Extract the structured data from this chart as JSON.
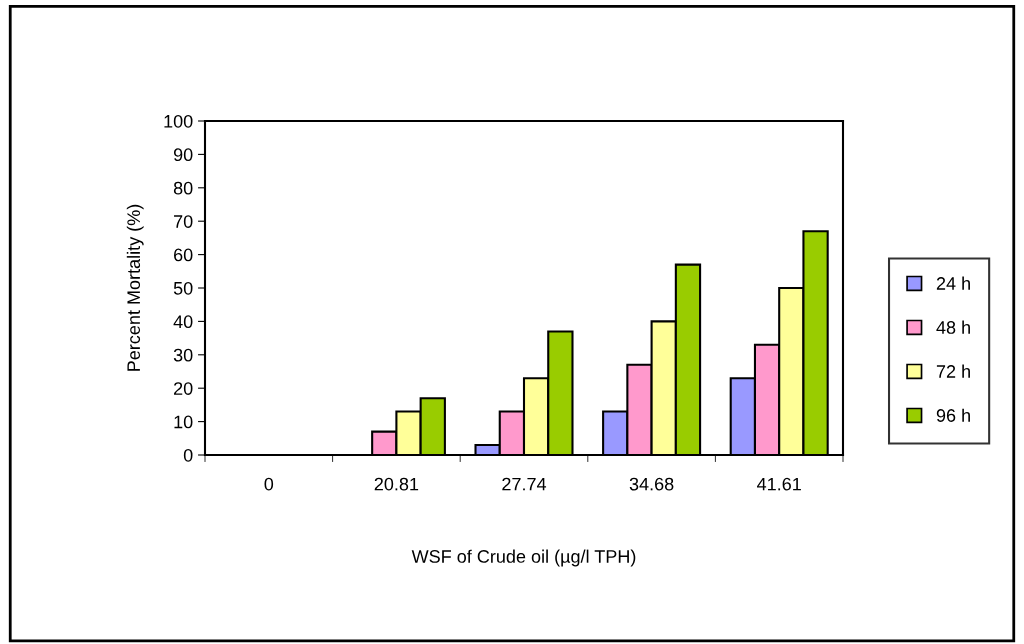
{
  "chart_data": {
    "type": "bar",
    "xlabel": "WSF of Crude oil (µg/l TPH)",
    "ylabel": "Percent Mortality (%)",
    "categories": [
      "0",
      "20.81",
      "27.74",
      "34.68",
      "41.61"
    ],
    "series": [
      {
        "name": "24 h",
        "color": "#9999ff",
        "values": [
          0,
          0,
          3,
          13,
          23
        ]
      },
      {
        "name": "48 h",
        "color": "#ff99cc",
        "values": [
          0,
          7,
          13,
          27,
          33
        ]
      },
      {
        "name": "72 h",
        "color": "#ffff99",
        "values": [
          0,
          13,
          23,
          40,
          50
        ]
      },
      {
        "name": "96 h",
        "color": "#99cc00",
        "values": [
          0,
          17,
          37,
          57,
          67
        ]
      }
    ],
    "ylim": [
      0,
      100
    ],
    "yticks": [
      0,
      10,
      20,
      30,
      40,
      50,
      60,
      70,
      80,
      90,
      100
    ],
    "grid": false,
    "legend": "right"
  }
}
